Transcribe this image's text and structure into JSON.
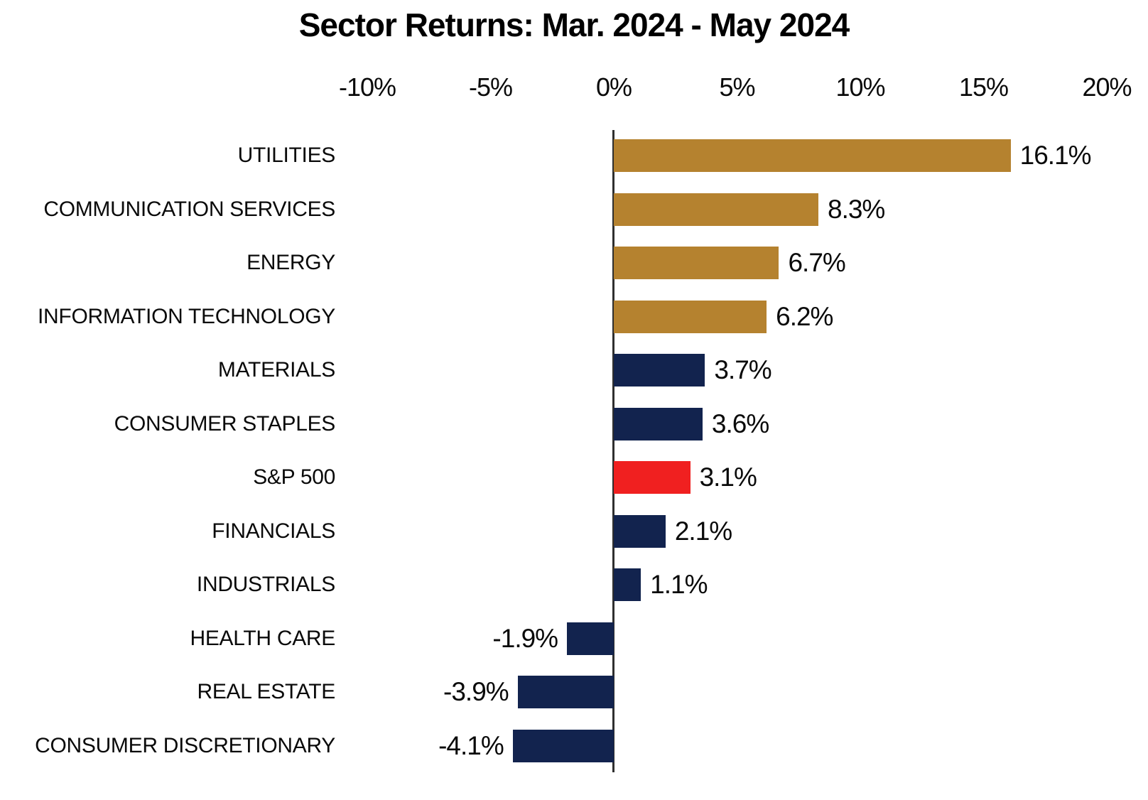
{
  "chart_data": {
    "type": "bar",
    "orientation": "horizontal",
    "title": "Sector Returns: Mar. 2024 - May 2024",
    "categories": [
      "UTILITIES",
      "COMMUNICATION SERVICES",
      "ENERGY",
      "INFORMATION TECHNOLOGY",
      "MATERIALS",
      "CONSUMER STAPLES",
      "S&P 500",
      "FINANCIALS",
      "INDUSTRIALS",
      "HEALTH CARE",
      "REAL ESTATE",
      "CONSUMER DISCRETIONARY"
    ],
    "values": [
      16.1,
      8.3,
      6.7,
      6.2,
      3.7,
      3.6,
      3.1,
      2.1,
      1.1,
      -1.9,
      -3.9,
      -4.1
    ],
    "value_labels": [
      "16.1%",
      "8.3%",
      "6.7%",
      "6.2%",
      "3.7%",
      "3.6%",
      "3.1%",
      "2.1%",
      "1.1%",
      "-1.9%",
      "-3.9%",
      "-4.1%"
    ],
    "bar_color_keys": [
      "gold",
      "gold",
      "gold",
      "gold",
      "navy",
      "navy",
      "red",
      "navy",
      "navy",
      "navy",
      "navy",
      "navy"
    ],
    "colors": {
      "gold": "#B5822F",
      "navy": "#12234E",
      "red": "#F02020"
    },
    "axis_color": "#2F2F2F",
    "text_color": "#0a0a0a",
    "xlim": [
      -10,
      20
    ],
    "x_ticks": [
      {
        "value": -10,
        "label": "-10%"
      },
      {
        "value": -5,
        "label": "-5%"
      },
      {
        "value": 0,
        "label": "0%"
      },
      {
        "value": 5,
        "label": "5%"
      },
      {
        "value": 10,
        "label": "10%"
      },
      {
        "value": 15,
        "label": "15%"
      },
      {
        "value": 20,
        "label": "20%"
      }
    ],
    "grid": false,
    "legend": "none",
    "highlight_category": "S&P 500"
  }
}
